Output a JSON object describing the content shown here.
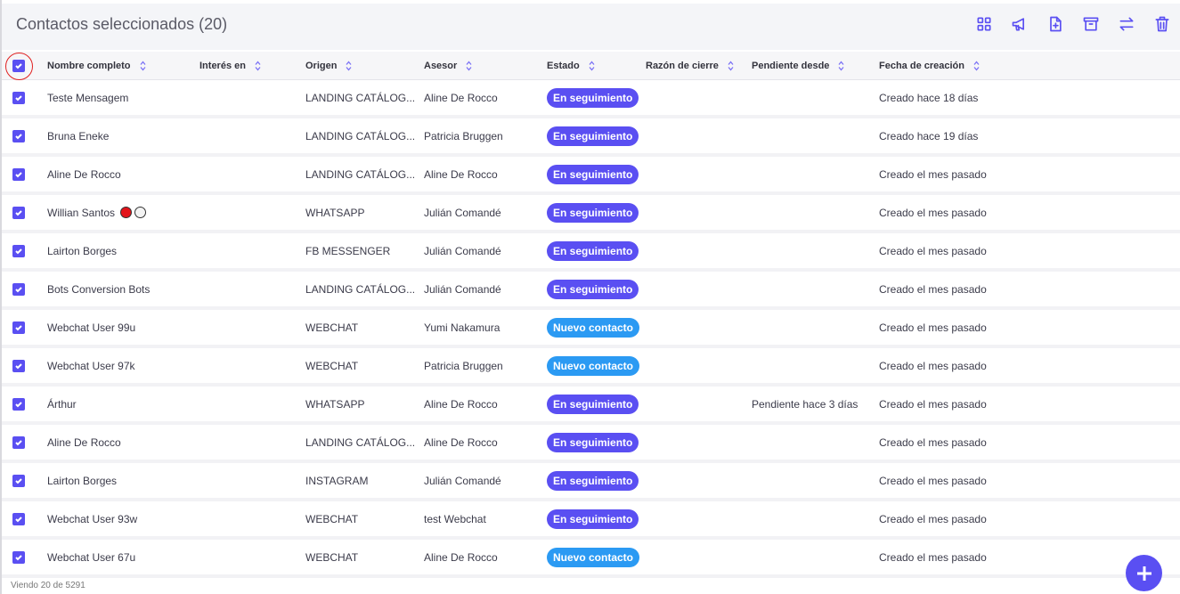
{
  "header": {
    "title": "Contactos seleccionados (20)",
    "actions": [
      "grid-icon",
      "megaphone-icon",
      "file-plus-icon",
      "archive-icon",
      "transfer-icon",
      "trash-icon"
    ]
  },
  "columns": [
    "Nombre completo",
    "Interés en",
    "Origen",
    "Asesor",
    "Estado",
    "Razón de cierre",
    "Pendiente desde",
    "Fecha de creación"
  ],
  "colors": {
    "accent": "#5a4ff2",
    "seguimiento": "#5a4ff2",
    "nuevo": "#2b9af3"
  },
  "rows": [
    {
      "name": "Teste Mensagem",
      "interes": "",
      "origen": "LANDING CATÁLOG...",
      "asesor": "Aline De Rocco",
      "estado": "En seguimiento",
      "razon": "",
      "pendiente": "",
      "fecha": "Creado hace 18 días"
    },
    {
      "name": "Bruna Eneke",
      "interes": "",
      "origen": "LANDING CATÁLOG...",
      "asesor": "Patricia Bruggen",
      "estado": "En seguimiento",
      "razon": "",
      "pendiente": "",
      "fecha": "Creado hace 19 días"
    },
    {
      "name": "Aline De Rocco",
      "interes": "",
      "origen": "LANDING CATÁLOG...",
      "asesor": "Aline De Rocco",
      "estado": "En seguimiento",
      "razon": "",
      "pendiente": "",
      "fecha": "Creado el mes pasado"
    },
    {
      "name": "Willian Santos",
      "dots": true,
      "interes": "",
      "origen": "WHATSAPP",
      "asesor": "Julián Comandé",
      "estado": "En seguimiento",
      "razon": "",
      "pendiente": "",
      "fecha": "Creado el mes pasado"
    },
    {
      "name": "Lairton Borges",
      "interes": "",
      "origen": "FB MESSENGER",
      "asesor": "Julián Comandé",
      "estado": "En seguimiento",
      "razon": "",
      "pendiente": "",
      "fecha": "Creado el mes pasado"
    },
    {
      "name": "Bots Conversion Bots",
      "interes": "",
      "origen": "LANDING CATÁLOG...",
      "asesor": "Julián Comandé",
      "estado": "En seguimiento",
      "razon": "",
      "pendiente": "",
      "fecha": "Creado el mes pasado"
    },
    {
      "name": "Webchat User 99u",
      "interes": "",
      "origen": "WEBCHAT",
      "asesor": "Yumi Nakamura",
      "estado": "Nuevo contacto",
      "razon": "",
      "pendiente": "",
      "fecha": "Creado el mes pasado"
    },
    {
      "name": "Webchat User 97k",
      "interes": "",
      "origen": "WEBCHAT",
      "asesor": "Patricia Bruggen",
      "estado": "Nuevo contacto",
      "razon": "",
      "pendiente": "",
      "fecha": "Creado el mes pasado"
    },
    {
      "name": "Árthur",
      "interes": "",
      "origen": "WHATSAPP",
      "asesor": "Aline De Rocco",
      "estado": "En seguimiento",
      "razon": "",
      "pendiente": "Pendiente hace 3 días",
      "fecha": "Creado el mes pasado"
    },
    {
      "name": "Aline De Rocco",
      "interes": "",
      "origen": "LANDING CATÁLOG...",
      "asesor": "Aline De Rocco",
      "estado": "En seguimiento",
      "razon": "",
      "pendiente": "",
      "fecha": "Creado el mes pasado"
    },
    {
      "name": "Lairton Borges",
      "interes": "",
      "origen": "INSTAGRAM",
      "asesor": "Julián Comandé",
      "estado": "En seguimiento",
      "razon": "",
      "pendiente": "",
      "fecha": "Creado el mes pasado"
    },
    {
      "name": "Webchat User 93w",
      "interes": "",
      "origen": "WEBCHAT",
      "asesor": "test Webchat",
      "estado": "En seguimiento",
      "razon": "",
      "pendiente": "",
      "fecha": "Creado el mes pasado"
    },
    {
      "name": "Webchat User 67u",
      "interes": "",
      "origen": "WEBCHAT",
      "asesor": "Aline De Rocco",
      "estado": "Nuevo contacto",
      "razon": "",
      "pendiente": "",
      "fecha": "Creado el mes pasado"
    }
  ],
  "footer": {
    "text": "Viendo 20 de 5291"
  }
}
